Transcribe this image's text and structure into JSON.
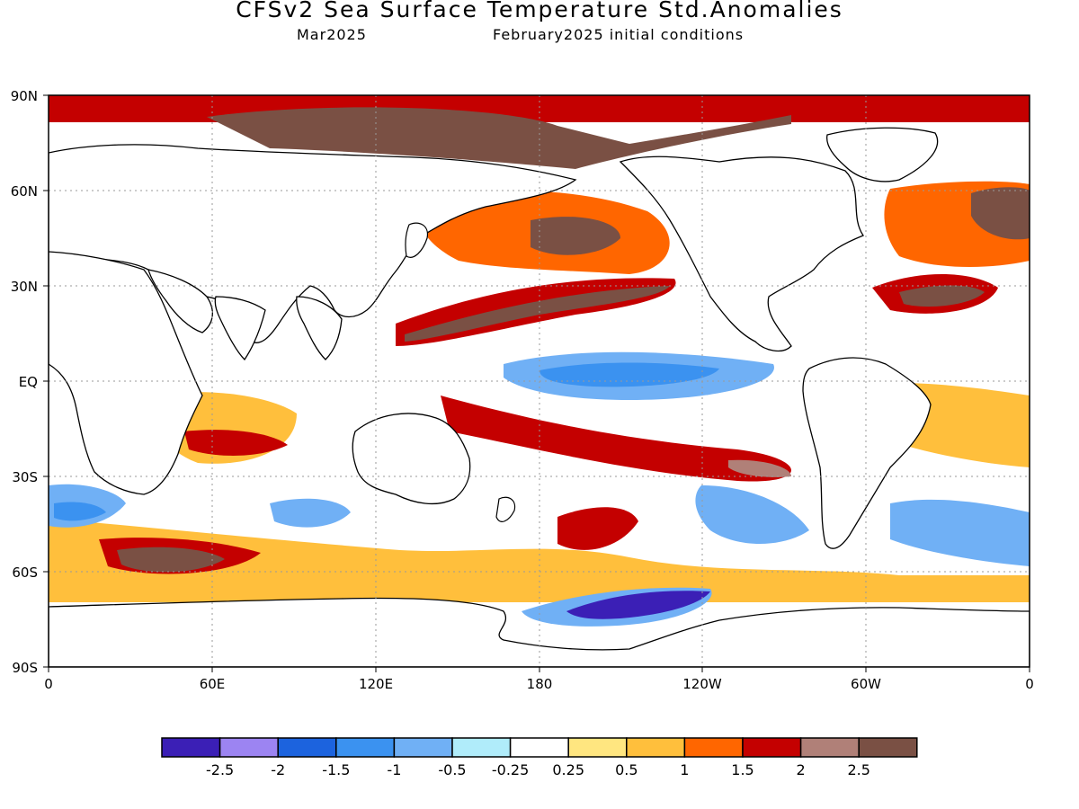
{
  "title": "CFSv2 Sea Surface Temperature Std.Anomalies",
  "valid_month": "Mar2025",
  "initial_conditions": "February2025 initial conditions",
  "map": {
    "lat_labels": [
      "90N",
      "60N",
      "30N",
      "EQ",
      "30S",
      "60S",
      "90S"
    ],
    "lon_labels": [
      "0",
      "60E",
      "120E",
      "180",
      "120W",
      "60W",
      "0"
    ],
    "ocean_background": "#ffffff",
    "land_color": "#ffffff",
    "coastline_color": "#000000",
    "grid_style": "dotted"
  },
  "colorbar": {
    "colors": [
      "#3b1fb6",
      "#9c84f2",
      "#1c63de",
      "#3b92f0",
      "#70b0f5",
      "#b0ecfa",
      "#ffffff",
      "#ffe680",
      "#ffbf3c",
      "#ff6600",
      "#c40000",
      "#b08078",
      "#7a5044"
    ],
    "labels": [
      "-2.5",
      "-2",
      "-1.5",
      "-1",
      "-0.5",
      "-0.25",
      "0.25",
      "0.5",
      "1",
      "1.5",
      "2",
      "2.5"
    ]
  }
}
